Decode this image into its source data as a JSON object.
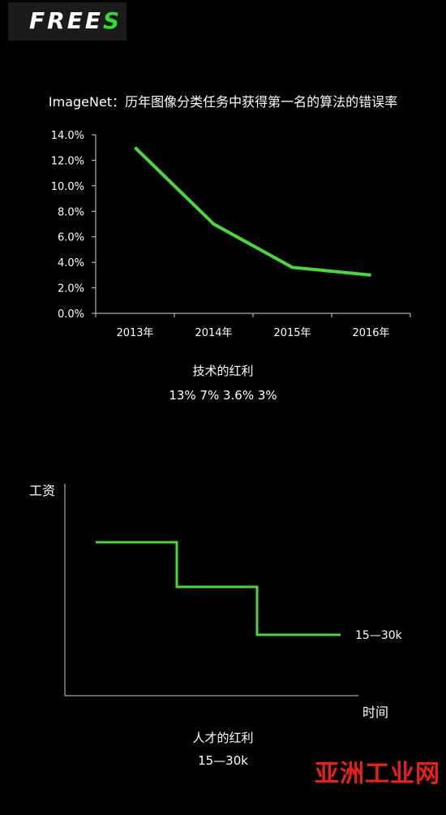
{
  "logo": {
    "text_main": "FREE",
    "text_accent": "S"
  },
  "chart_data": [
    {
      "type": "line",
      "title": "ImageNet：历年图像分类任务中获得第一名的算法的错误率",
      "categories": [
        "2013年",
        "2014年",
        "2015年",
        "2016年"
      ],
      "series": [
        {
          "values": [
            13.0,
            7.0,
            3.6,
            3.0
          ]
        }
      ],
      "y_ticks": [
        "0.0%",
        "2.0%",
        "4.0%",
        "6.0%",
        "8.0%",
        "10.0%",
        "12.0%",
        "14.0%"
      ],
      "ylim": [
        0,
        14
      ],
      "color": "#4ad63c",
      "grid": false
    },
    {
      "type": "line",
      "step": true,
      "ylabel": "工资",
      "xlabel": "时间",
      "annotation": "15—30k",
      "color": "#4ad63c"
    }
  ],
  "captions": {
    "caption1_title": "技术的红利",
    "caption1_values": "13% 7% 3.6% 3%",
    "caption2_title": "人才的红利",
    "caption2_values": "15—30k"
  },
  "watermark": "亚洲工业网"
}
